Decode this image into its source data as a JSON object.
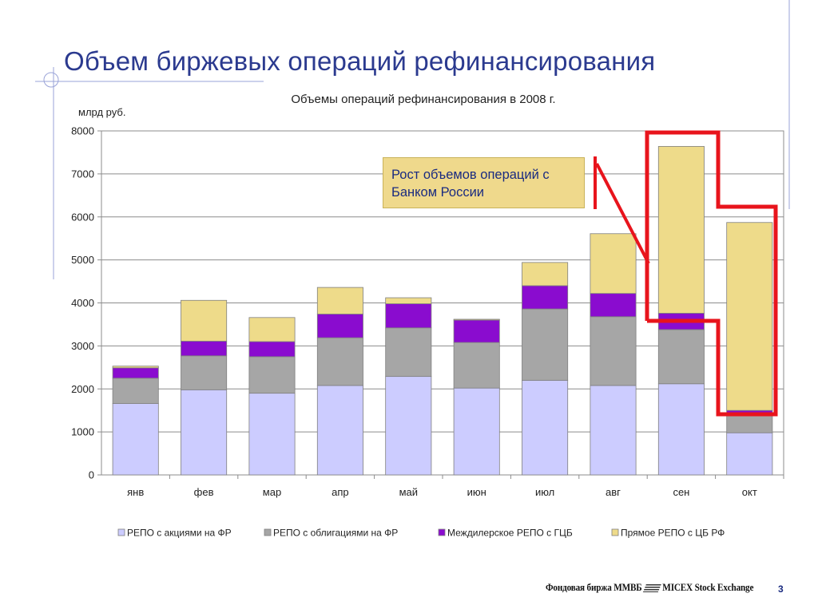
{
  "slide": {
    "title": "Объем биржевых операций рефинансирования",
    "footer_logo": {
      "left": "Фондовая биржа ММВБ",
      "right": "MICEX Stock Exchange"
    },
    "page_number": "3",
    "callout": "Рост объемов операций с Банком России"
  },
  "colors": {
    "title": "#2b3a8f",
    "series": [
      "#ccccff",
      "#a6a6a6",
      "#8a0ccf",
      "#eedb8a"
    ],
    "highlight": "#e8141c"
  },
  "chart_data": {
    "type": "bar",
    "stacked": true,
    "title": "Объемы операций рефинансирования в 2008 г.",
    "ylabel": "млрд руб.",
    "xlabel": "",
    "ylim": [
      0,
      8000
    ],
    "yticks": [
      "0",
      "1000",
      "2000",
      "3000",
      "4000",
      "5000",
      "6000",
      "7000",
      "8000"
    ],
    "categories": [
      "янв",
      "фев",
      "мар",
      "апр",
      "май",
      "июн",
      "июл",
      "авг",
      "сен",
      "окт"
    ],
    "series": [
      {
        "name": "РЕПО с акциями на ФР",
        "values": [
          1660,
          1980,
          1900,
          2080,
          2290,
          2020,
          2200,
          2080,
          2120,
          980
        ]
      },
      {
        "name": "РЕПО с облигациями на ФР",
        "values": [
          590,
          790,
          850,
          1110,
          1130,
          1060,
          1660,
          1600,
          1260,
          400
        ]
      },
      {
        "name": "Междилерское РЕПО с ГЦБ",
        "values": [
          240,
          340,
          350,
          550,
          560,
          520,
          540,
          540,
          380,
          120
        ]
      },
      {
        "name": "Прямое РЕПО с ЦБ РФ",
        "values": [
          40,
          950,
          560,
          620,
          140,
          20,
          540,
          1390,
          3880,
          4370
        ]
      }
    ],
    "legend_position": "bottom",
    "grid": true
  }
}
